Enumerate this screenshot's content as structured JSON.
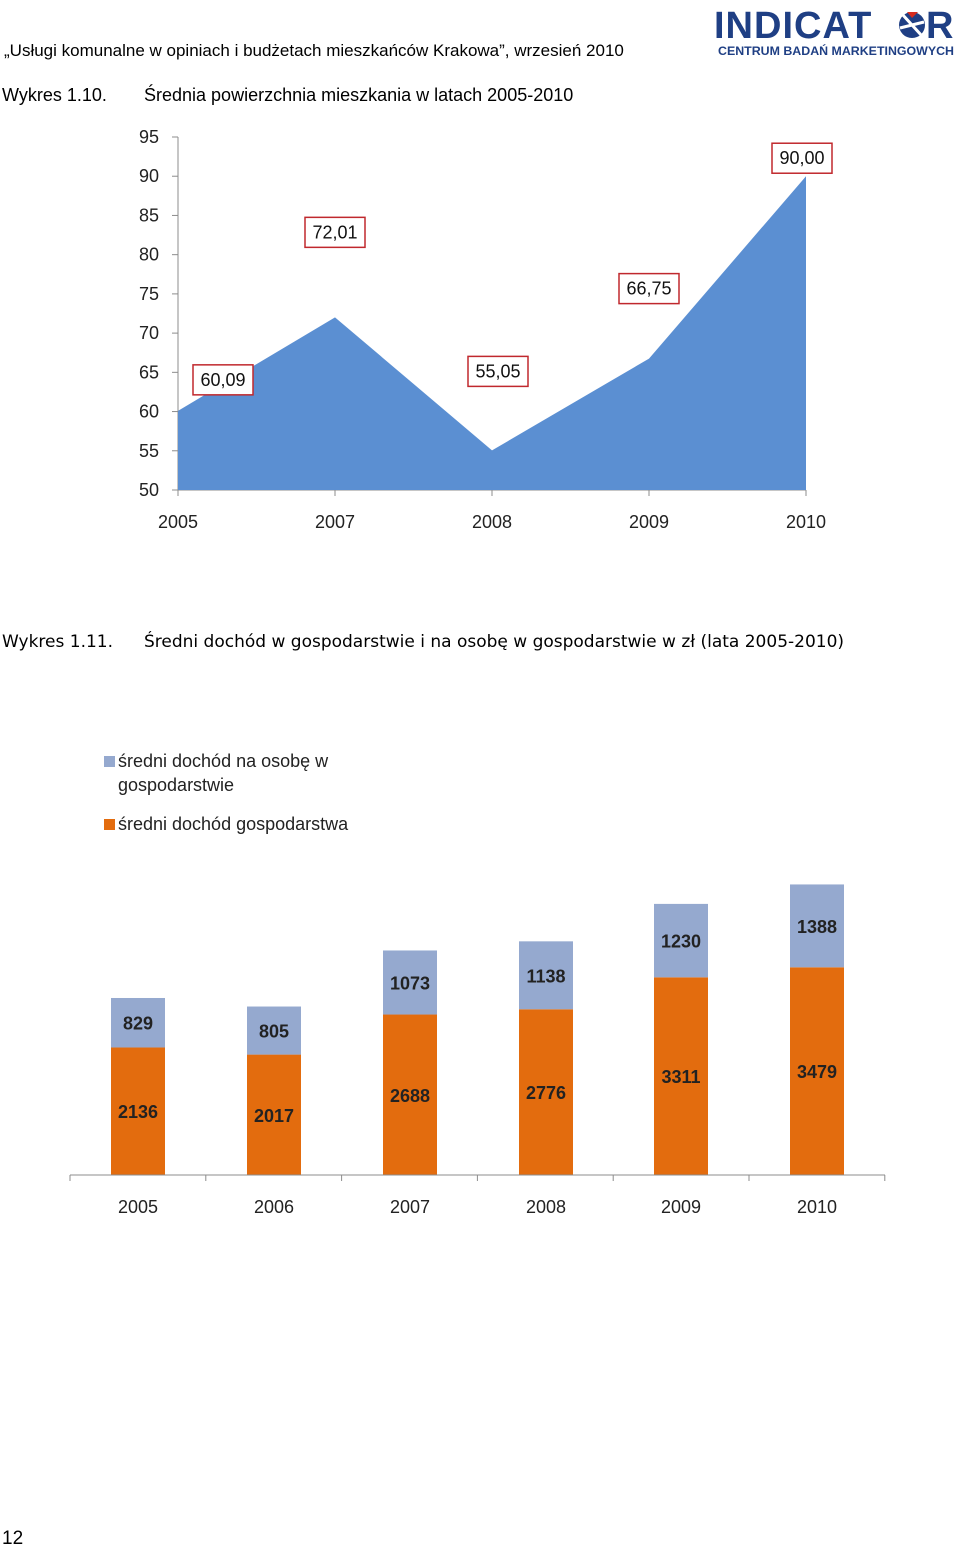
{
  "header": {
    "text": "„Usługi komunalne w opiniach i budżetach mieszkańców Krakowa”, wrzesień 2010",
    "logo_text": "INDICATOR",
    "logo_subtext": "CENTRUM BADAŃ MARKETINGOWYCH",
    "logo_color": "#1f3f84",
    "logo_accent": "#d52b1e"
  },
  "figures": [
    {
      "label": "Wykres 1.10.",
      "title": "Średnia powierzchnia mieszkania w latach 2005-2010"
    },
    {
      "label": "Wykres 1.11.",
      "title": "Średni dochód w gospodarstwie i na osobę w gospodarstwie w zł (lata 2005-2010)"
    }
  ],
  "chart_data": [
    {
      "type": "area",
      "categories": [
        "2005",
        "2007",
        "2008",
        "2009",
        "2010"
      ],
      "values": [
        60.09,
        72.01,
        55.05,
        66.75,
        90.0
      ],
      "data_labels": [
        "60,09",
        "72,01",
        "55,05",
        "66,75",
        "90,00"
      ],
      "ylim": [
        50,
        95
      ],
      "yticks": [
        50,
        55,
        60,
        65,
        70,
        75,
        80,
        85,
        90,
        95
      ],
      "grid": false,
      "legend": "none",
      "color": "#5b8fd2",
      "label_border_color": "#c0282d"
    },
    {
      "type": "bar",
      "stacked": true,
      "categories": [
        "2005",
        "2006",
        "2007",
        "2008",
        "2009",
        "2010"
      ],
      "series": [
        {
          "name": "średni dochód na osobę w gospodarstwie",
          "values": [
            829,
            805,
            1073,
            1138,
            1230,
            1388
          ],
          "color": "#95a9cf"
        },
        {
          "name": "średni dochód gospodarstwa",
          "values": [
            2136,
            2017,
            2688,
            2776,
            3311,
            3479
          ],
          "color": "#e36c0e"
        }
      ],
      "grid": false,
      "legend": "top-left"
    }
  ],
  "page_number": "12"
}
